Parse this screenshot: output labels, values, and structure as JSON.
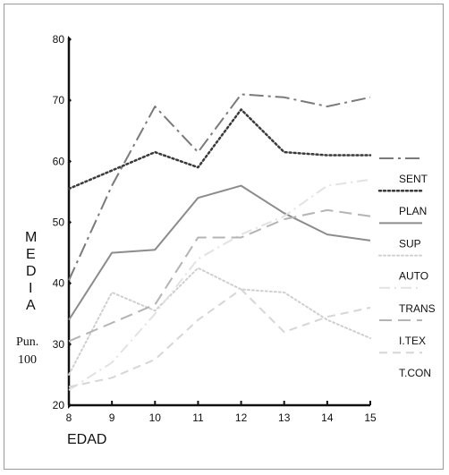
{
  "chart_data": {
    "type": "line",
    "title": "",
    "xlabel": "EDAD",
    "ylabel": "MEDIA",
    "ylabel_letters": [
      "M",
      "E",
      "D",
      "I",
      "A"
    ],
    "ylabel_unit_line1": "Pun.",
    "ylabel_unit_line2": "100",
    "x": [
      8,
      9,
      10,
      11,
      12,
      13,
      14,
      15
    ],
    "x_tick_labels": [
      "8",
      "9",
      "10",
      "11",
      "12",
      "13",
      "14",
      "15"
    ],
    "y_ticks": [
      20,
      30,
      40,
      50,
      60,
      70,
      80
    ],
    "y_tick_labels": [
      "20",
      "30",
      "40",
      "50",
      "60",
      "70",
      "80"
    ],
    "xlim": [
      8,
      15
    ],
    "ylim": [
      20,
      80
    ],
    "grid": false,
    "legend_position": "right",
    "series": [
      {
        "name": "SENT",
        "style": "dashdot",
        "color": "#7a7a7a",
        "width": 2,
        "values": [
          40.5,
          56.0,
          69.0,
          61.5,
          71.0,
          70.5,
          69.0,
          70.5
        ]
      },
      {
        "name": "PLAN",
        "style": "dotted",
        "color": "#3a3a3a",
        "width": 2.5,
        "values": [
          55.5,
          58.5,
          61.5,
          59.0,
          68.5,
          61.5,
          61.0,
          61.0
        ]
      },
      {
        "name": "SUP",
        "style": "solid",
        "color": "#8c8c8c",
        "width": 2,
        "values": [
          34.0,
          45.0,
          45.5,
          54.0,
          56.0,
          51.5,
          48.0,
          47.0
        ]
      },
      {
        "name": "AUTO",
        "style": "dotted-light",
        "color": "#cfcfcf",
        "width": 2,
        "values": [
          25.0,
          38.5,
          35.5,
          42.5,
          39.0,
          38.5,
          34.0,
          31.0
        ]
      },
      {
        "name": "TRANS",
        "style": "dashdot-light",
        "color": "#e2e2e2",
        "width": 2,
        "values": [
          22.5,
          27.0,
          35.0,
          44.0,
          48.0,
          51.0,
          56.0,
          57.0
        ]
      },
      {
        "name": "I.TEX",
        "style": "dashed",
        "color": "#b4b4b4",
        "width": 2,
        "values": [
          30.5,
          33.5,
          36.5,
          47.5,
          47.5,
          50.5,
          52.0,
          51.0
        ]
      },
      {
        "name": "T.CON",
        "style": "dashed-light",
        "color": "#d6d6d6",
        "width": 2,
        "values": [
          23.0,
          24.5,
          27.5,
          34.0,
          39.0,
          32.0,
          34.5,
          36.0
        ]
      }
    ]
  }
}
